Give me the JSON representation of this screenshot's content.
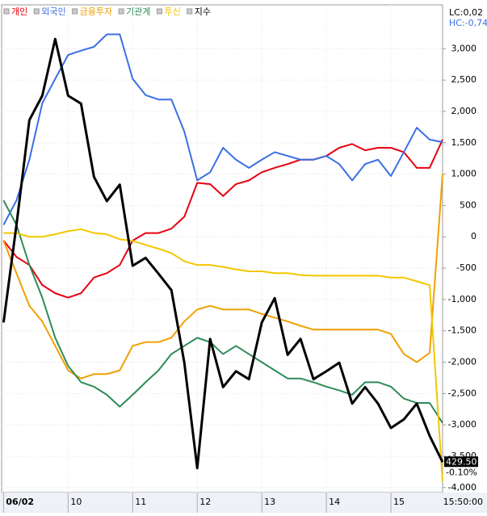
{
  "chart_data": {
    "type": "line",
    "legend_position": "top-left",
    "header_right": [
      "LC:0,02",
      "HC:-0,74"
    ],
    "x_end_label": "15:50:00",
    "x": [
      9.0,
      9.2,
      9.4,
      9.6,
      9.8,
      10.0,
      10.2,
      10.4,
      10.6,
      10.8,
      11.0,
      11.2,
      11.4,
      11.6,
      11.8,
      12.0,
      12.2,
      12.4,
      12.6,
      12.8,
      13.0,
      13.2,
      13.4,
      13.6,
      13.8,
      14.0,
      14.2,
      14.4,
      14.6,
      14.8,
      15.0,
      15.2,
      15.4,
      15.6,
      15.8
    ],
    "xlim": [
      8.97,
      15.8
    ],
    "xticks": [
      {
        "value": 9,
        "label": "06/02"
      },
      10,
      11,
      12,
      13,
      14,
      15
    ],
    "ylim": [
      -4080,
      3700
    ],
    "yticks": [
      {
        "value": 3000,
        "label": "3,000"
      },
      {
        "value": 2500,
        "label": "2,500"
      },
      {
        "value": 2000,
        "label": "2,000"
      },
      {
        "value": 1500,
        "label": "1,500"
      },
      {
        "value": 1000,
        "label": "1,000"
      },
      500,
      0,
      -500,
      {
        "value": -1000,
        "label": "-1,000"
      },
      {
        "value": -1500,
        "label": "-1,500"
      },
      {
        "value": -2000,
        "label": "-2,000"
      },
      {
        "value": -2500,
        "label": "-2,500"
      },
      {
        "value": -3000,
        "label": "-3,000"
      },
      {
        "value": -3500,
        "label": "-3,500"
      },
      {
        "value": -4000,
        "label": "-4,000"
      }
    ],
    "y2lim": [
      429,
      437
    ],
    "y2_end_label": "-0.10%",
    "grid": true,
    "series": [
      {
        "name": "개인",
        "color": "#e60012",
        "values": [
          -60,
          -320,
          -450,
          -770,
          -900,
          -970,
          -900,
          -650,
          -580,
          -450,
          -60,
          60,
          60,
          130,
          320,
          860,
          840,
          650,
          840,
          900,
          1030,
          1100,
          1160,
          1230,
          1230,
          1290,
          1420,
          1480,
          1380,
          1420,
          1420,
          1350,
          1100,
          1100,
          1550
        ]
      },
      {
        "name": "외국인",
        "color": "#3b6fe6",
        "values": [
          190,
          580,
          1230,
          2130,
          2520,
          2900,
          2970,
          3030,
          3230,
          3230,
          2520,
          2260,
          2190,
          2190,
          1680,
          900,
          1030,
          1420,
          1230,
          1100,
          1230,
          1350,
          1290,
          1230,
          1230,
          1290,
          1160,
          900,
          1160,
          1230,
          970,
          1350,
          1740,
          1550,
          1510
        ]
      },
      {
        "name": "금융투자",
        "color": "#f0a000",
        "values": [
          -65,
          -580,
          -1100,
          -1350,
          -1740,
          -2130,
          -2260,
          -2190,
          -2190,
          -2130,
          -1740,
          -1680,
          -1680,
          -1610,
          -1350,
          -1160,
          -1100,
          -1160,
          -1160,
          -1160,
          -1230,
          -1290,
          -1350,
          -1420,
          -1480,
          -1480,
          -1480,
          -1480,
          -1480,
          -1480,
          -1550,
          -1870,
          -2000,
          -1850,
          1000
        ]
      },
      {
        "name": "기관계",
        "color": "#2e8b57",
        "values": [
          580,
          190,
          -450,
          -970,
          -1610,
          -2060,
          -2320,
          -2390,
          -2520,
          -2710,
          -2520,
          -2320,
          -2130,
          -1870,
          -1740,
          -1610,
          -1680,
          -1870,
          -1740,
          -1870,
          -2000,
          -2130,
          -2260,
          -2260,
          -2320,
          -2390,
          -2450,
          -2520,
          -2320,
          -2320,
          -2390,
          -2580,
          -2650,
          -2650,
          -2970
        ]
      },
      {
        "name": "투신",
        "color": "#f2c700",
        "values": [
          60,
          60,
          0,
          0,
          40,
          90,
          120,
          60,
          40,
          -40,
          -65,
          -130,
          -190,
          -260,
          -390,
          -450,
          -450,
          -480,
          -520,
          -550,
          -550,
          -580,
          -580,
          -610,
          -620,
          -620,
          -620,
          -620,
          -620,
          -620,
          -650,
          -650,
          -710,
          -770,
          -3900
        ]
      },
      {
        "name": "지수",
        "color": "#000000",
        "axis": "y2",
        "values": [
          431.79,
          433.39,
          435.11,
          435.51,
          436.44,
          435.51,
          435.38,
          434.18,
          433.78,
          434.05,
          432.72,
          432.85,
          432.59,
          432.32,
          431.13,
          429.4,
          431.52,
          430.73,
          430.99,
          430.86,
          431.79,
          432.19,
          431.26,
          431.52,
          430.86,
          430.99,
          431.13,
          430.46,
          430.73,
          430.46,
          430.06,
          430.2,
          430.46,
          429.93,
          429.5
        ],
        "value_labels": [
          null,
          null,
          null,
          null,
          null,
          null,
          null,
          null,
          null,
          null,
          null,
          null,
          null,
          null,
          null,
          null,
          null,
          null,
          null,
          null,
          null,
          null,
          null,
          null,
          null,
          null,
          null,
          null,
          null,
          null,
          null,
          null,
          null,
          null,
          "429.50"
        ]
      }
    ]
  }
}
